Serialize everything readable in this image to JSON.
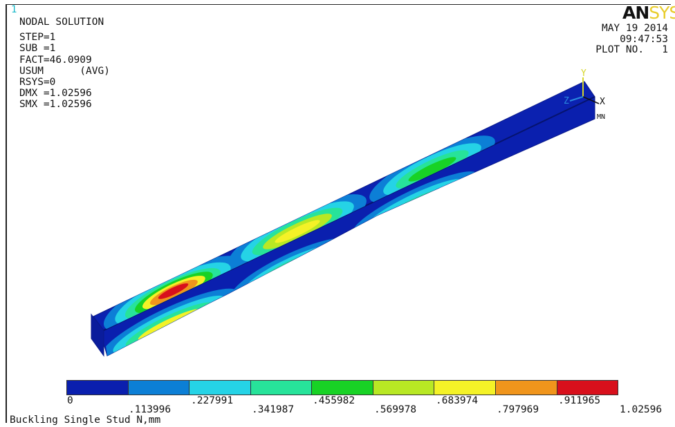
{
  "window_number": "1",
  "info_lines": [
    "NODAL SOLUTION",
    "",
    "STEP=1",
    "SUB =1",
    "FACT=46.0909",
    "USUM      (AVG)",
    "RSYS=0",
    "DMX =1.02596",
    "SMX =1.02596"
  ],
  "brand": {
    "an": "AN",
    "sys": "SYS"
  },
  "date_block": {
    "date": "MAY 19 2014",
    "time": "09:47:53",
    "plot": "PLOT NO.   1"
  },
  "triad": {
    "y": "Y",
    "z": "Z",
    "x": "X",
    "mn": "MN"
  },
  "legend": {
    "colors": [
      "#0a1fae",
      "#0c7fd6",
      "#25d3e6",
      "#27e39a",
      "#18d225",
      "#b8e824",
      "#f4f227",
      "#f0951c",
      "#d8101c"
    ],
    "upper_labels": [
      "0",
      ".227991",
      ".455982",
      ".683974",
      ".911965"
    ],
    "lower_labels": [
      ".113996",
      ".341987",
      ".569978",
      ".797969",
      "1.02596"
    ]
  },
  "caption": "Buckling Single Stud N,mm"
}
